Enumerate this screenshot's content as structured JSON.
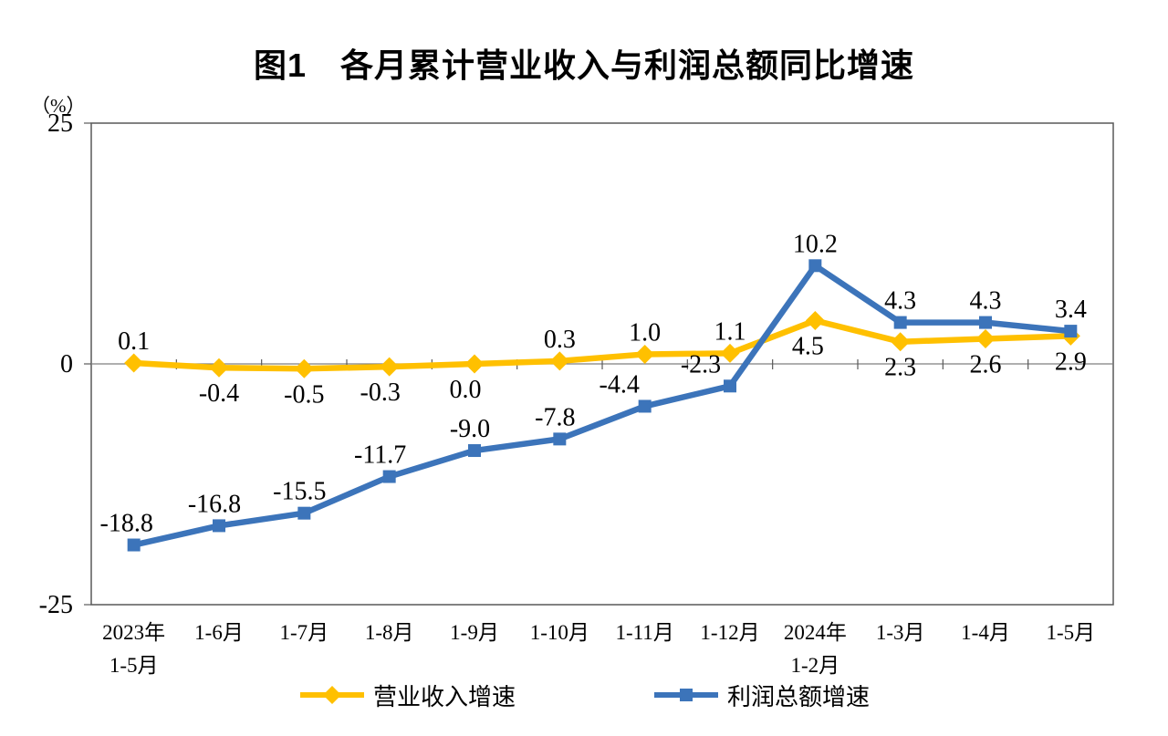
{
  "title": "图1　各月累计营业收入与利润总额同比增速",
  "y_axis": {
    "unit": "（%）",
    "ticks": [
      "25",
      "0",
      "-25"
    ],
    "tick_values": [
      25,
      0,
      -25
    ]
  },
  "chart_data": {
    "type": "line",
    "title": "图1 各月累计营业收入与利润总额同比增速",
    "xlabel": "",
    "ylabel": "(%)",
    "ylim": [
      -25,
      25
    ],
    "grid": false,
    "legend_position": "bottom",
    "categories": [
      [
        "2023年",
        "1-5月"
      ],
      [
        "1-6月"
      ],
      [
        "1-7月"
      ],
      [
        "1-8月"
      ],
      [
        "1-9月"
      ],
      [
        "1-10月"
      ],
      [
        "1-11月"
      ],
      [
        "1-12月"
      ],
      [
        "2024年",
        "1-2月"
      ],
      [
        "1-3月"
      ],
      [
        "1-4月"
      ],
      [
        "1-5月"
      ]
    ],
    "series": [
      {
        "name": "营业收入增速",
        "color": "#FFC000",
        "marker": "diamond",
        "values": [
          0.1,
          -0.4,
          -0.5,
          -0.3,
          0.0,
          0.3,
          1.0,
          1.1,
          4.5,
          2.3,
          2.6,
          2.9
        ],
        "label_side": [
          "above",
          "below",
          "below",
          "below",
          "below",
          "above",
          "above",
          "above",
          "below",
          "below",
          "below",
          "below"
        ],
        "label_dx": [
          0,
          0,
          0,
          -10,
          -10,
          0,
          0,
          0,
          -8,
          0,
          0,
          0
        ]
      },
      {
        "name": "利润总额增速",
        "color": "#3C74BA",
        "marker": "square",
        "values": [
          -18.8,
          -16.8,
          -15.5,
          -11.7,
          -9.0,
          -7.8,
          -4.4,
          -2.3,
          10.2,
          4.3,
          4.3,
          3.4
        ],
        "label_side": [
          "above",
          "above",
          "above",
          "above",
          "above",
          "above",
          "above",
          "above",
          "above",
          "above",
          "above",
          "above"
        ],
        "label_dx": [
          -8,
          -5,
          -5,
          -10,
          -5,
          -5,
          -28,
          -32,
          0,
          0,
          0,
          0
        ]
      }
    ]
  },
  "legend": {
    "items": [
      "营业收入增速",
      "利润总额增速"
    ]
  }
}
